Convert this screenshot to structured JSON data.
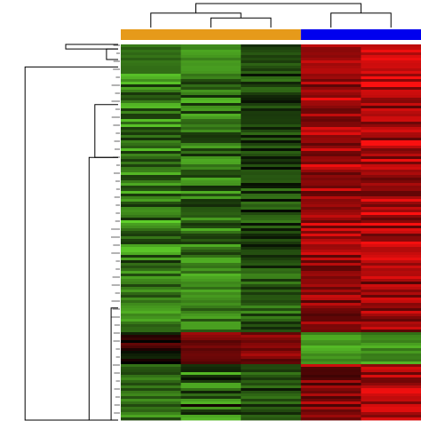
{
  "chart_data": {
    "type": "heatmap",
    "title": "",
    "xlabel": "",
    "ylabel": "",
    "legend": "none",
    "grid": false,
    "colors": {
      "low": "#5fd02a",
      "mid": "#000000",
      "high": "#ff1010",
      "group_a": "#e69a1a",
      "group_b": "#0000ee",
      "dendrogram": "#000000"
    },
    "column_groups": [
      {
        "color": "#e69a1a",
        "columns": [
          0,
          1,
          2
        ]
      },
      {
        "color": "#0000ee",
        "columns": [
          3,
          4
        ]
      }
    ],
    "column_dendrogram": [
      {
        "left": 0,
        "right": 4,
        "height": 1.0
      },
      {
        "left": 0,
        "right": 1,
        "height": 0.6
      },
      {
        "left": 1,
        "right": 2,
        "height": 0.4
      },
      {
        "left": 3,
        "right": 4,
        "height": 0.6
      }
    ],
    "blocks": [
      {
        "row_fraction": [
          0.0,
          0.075
        ],
        "columns": [
          [
            -0.6,
            -0.4
          ],
          [
            -0.8,
            -0.6
          ],
          [
            -0.5,
            -0.2
          ],
          [
            0.5,
            0.8
          ],
          [
            0.6,
            0.95
          ]
        ]
      },
      {
        "row_fraction": [
          0.075,
          0.6
        ],
        "columns": [
          [
            -1.0,
            -0.2
          ],
          [
            -0.9,
            -0.2
          ],
          [
            -0.6,
            -0.05
          ],
          [
            0.35,
            0.95
          ],
          [
            0.35,
            1.0
          ]
        ]
      },
      {
        "row_fraction": [
          0.6,
          0.765
        ],
        "columns": [
          [
            -0.9,
            -0.3
          ],
          [
            -0.9,
            -0.3
          ],
          [
            -0.7,
            -0.2
          ],
          [
            0.3,
            0.8
          ],
          [
            0.3,
            0.9
          ]
        ]
      },
      {
        "row_fraction": [
          0.765,
          0.845
        ],
        "columns": [
          [
            -0.2,
            0.4
          ],
          [
            0.3,
            0.7
          ],
          [
            0.3,
            0.7
          ],
          [
            -0.9,
            -0.6
          ],
          [
            -0.9,
            -0.5
          ]
        ]
      },
      {
        "row_fraction": [
          0.845,
          1.0
        ],
        "columns": [
          [
            -0.8,
            -0.3
          ],
          [
            -0.9,
            0.1
          ],
          [
            -0.6,
            -0.1
          ],
          [
            0.2,
            0.8
          ],
          [
            0.4,
            0.95
          ]
        ]
      }
    ],
    "row_dendrogram": [
      {
        "top": 0.0,
        "bottom": 0.012,
        "depth": 0.45
      },
      {
        "top": 0.012,
        "bottom": 0.04,
        "depth": 0.1
      },
      {
        "top": 0.06,
        "bottom": 1.0,
        "depth": 0.8
      },
      {
        "top": 0.16,
        "bottom": 0.3,
        "depth": 0.2
      },
      {
        "top": 0.3,
        "bottom": 1.0,
        "depth": 0.25
      },
      {
        "top": 0.7,
        "bottom": 1.0,
        "depth": 0.06
      }
    ]
  }
}
